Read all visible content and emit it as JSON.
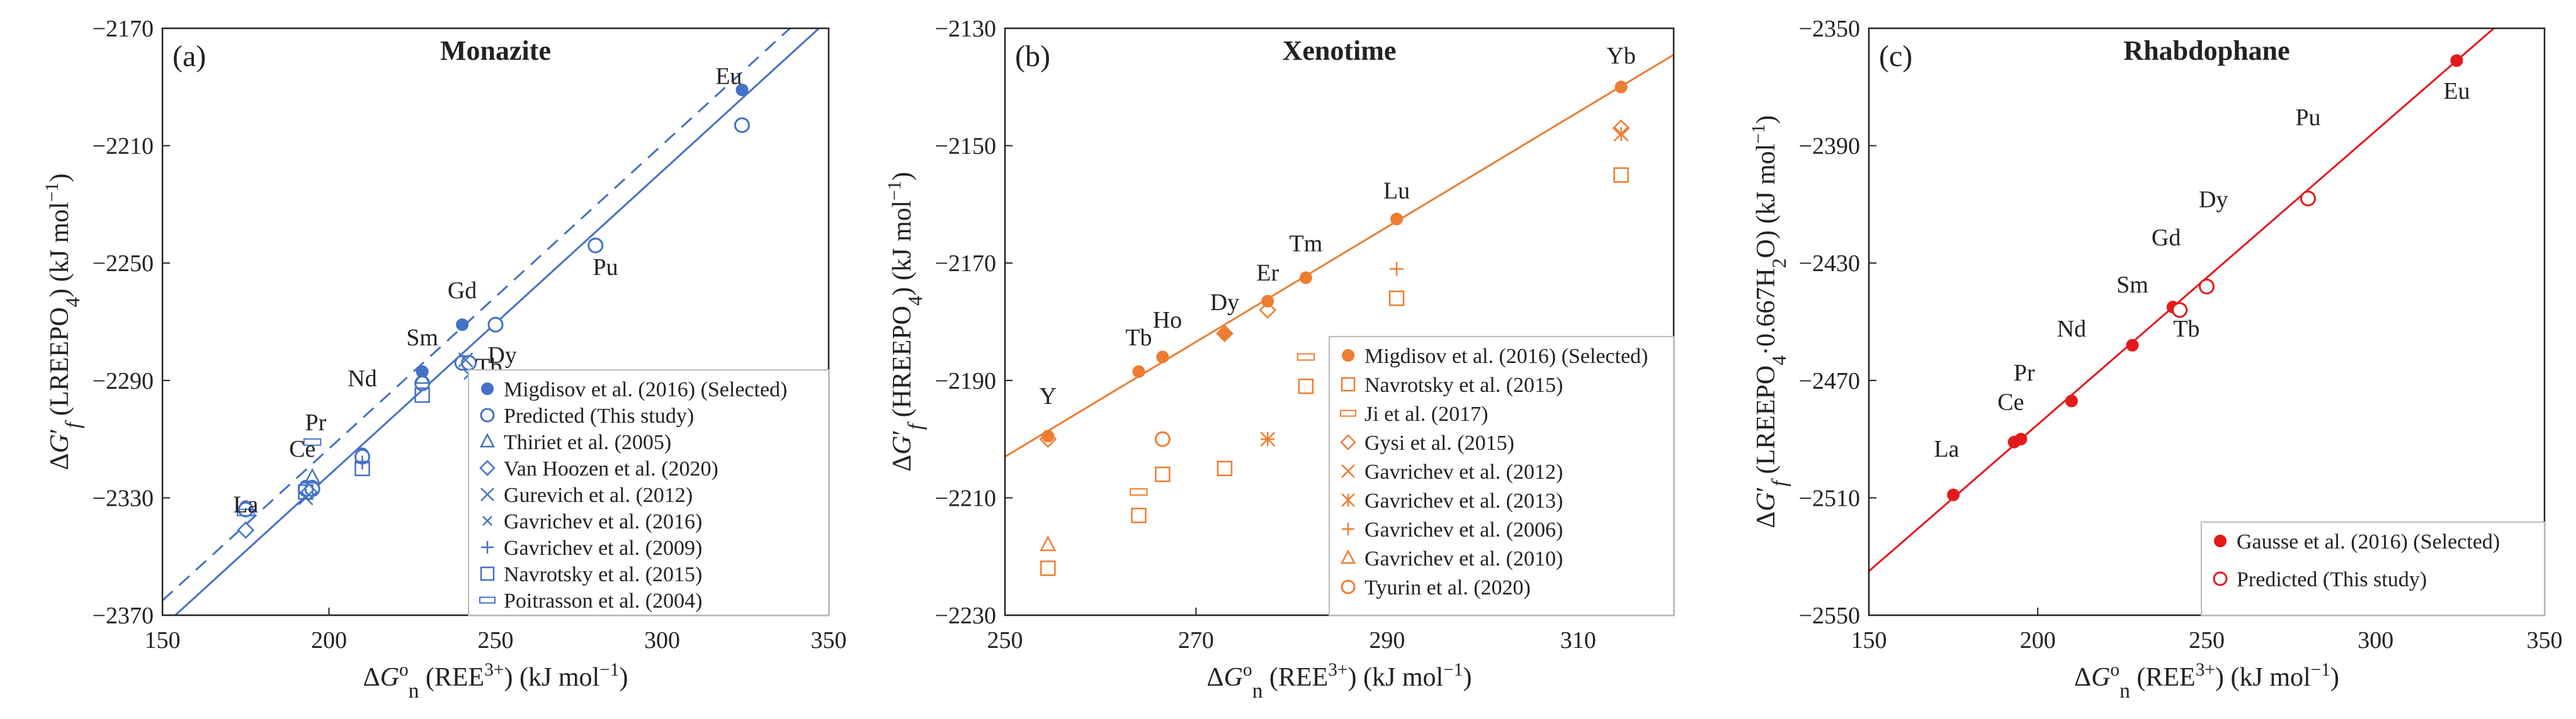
{
  "colors": {
    "monazite": "#4472C4",
    "xenotime": "#ED7D31",
    "rhabdophane": "#E31A1C"
  },
  "chart_data": [
    {
      "type": "scatter",
      "panel_label": "(a)",
      "title": "Monazite",
      "xlabel_html": "ΔG°n (REE3+) (kJ mol−1)",
      "ylabel_html": "ΔG′f (LREEPO4) (kJ mol−1)",
      "xlim": [
        150,
        350
      ],
      "ylim": [
        -2370,
        -2170
      ],
      "xticks": [
        150,
        200,
        250,
        300,
        350
      ],
      "yticks": [
        -2370,
        -2330,
        -2290,
        -2250,
        -2210,
        -2170
      ],
      "tick_labels_x": [
        "150",
        "200",
        "250",
        "300",
        "350"
      ],
      "tick_labels_y": [
        "−2370",
        "−2330",
        "−2290",
        "−2250",
        "−2210",
        "−2170"
      ],
      "legend": [
        "Migdisov et al. (2016) (Selected)",
        "Predicted (This study)",
        "Thiriet et al. (2005)",
        "Van Hoozen et al. (2020)",
        "Gurevich et al. (2012)",
        "Gavrichev et al. (2016)",
        "Gavrichev et al. (2009)",
        "Navrotsky et al. (2015)",
        "Poitrasson et al. (2004)"
      ],
      "element_labels": [
        {
          "text": "La",
          "x": 175,
          "y": -2335
        },
        {
          "text": "Ce",
          "x": 192,
          "y": -2316
        },
        {
          "text": "Pr",
          "x": 196,
          "y": -2307
        },
        {
          "text": "Nd",
          "x": 210,
          "y": -2292
        },
        {
          "text": "Sm",
          "x": 228,
          "y": -2278
        },
        {
          "text": "Gd",
          "x": 240,
          "y": -2262
        },
        {
          "text": "Tb",
          "x": 248,
          "y": -2288
        },
        {
          "text": "Dy",
          "x": 252,
          "y": -2284
        },
        {
          "text": "Pu",
          "x": 283,
          "y": -2254
        },
        {
          "text": "Eu",
          "x": 320,
          "y": -2189
        }
      ],
      "series": [
        {
          "name": "Migdisov et al. (2016) (Selected)",
          "marker": "filled-circle",
          "x": [
            175,
            193,
            195,
            210,
            228,
            240,
            324
          ],
          "y": [
            -2333,
            -2326,
            -2326,
            -2315,
            -2287,
            -2271,
            -2191
          ]
        },
        {
          "name": "Predicted (This study)",
          "marker": "open-circle",
          "x": [
            175,
            193,
            195,
            210,
            228,
            240,
            242,
            250,
            280,
            324
          ],
          "y": [
            -2334,
            -2327,
            -2327,
            -2316,
            -2291,
            -2284,
            -2284,
            -2271,
            -2244,
            -2203
          ]
        },
        {
          "name": "Thiriet et al. (2005)",
          "marker": "triangle",
          "x": [
            195,
            228
          ],
          "y": [
            -2323,
            -2289
          ]
        },
        {
          "name": "Van Hoozen et al. (2020)",
          "marker": "diamond",
          "x": [
            175,
            194
          ],
          "y": [
            -2341,
            -2328
          ]
        },
        {
          "name": "Gurevich et al. (2012)",
          "marker": "x",
          "x": [
            193,
            241
          ],
          "y": [
            -2330,
            -2283
          ]
        },
        {
          "name": "Gavrichev et al. (2016)",
          "marker": "small-x",
          "x": [
            242
          ],
          "y": [
            -2288
          ]
        },
        {
          "name": "Gavrichev et al. (2009)",
          "marker": "plus",
          "x": [
            210
          ],
          "y": [
            -2318
          ]
        },
        {
          "name": "Navrotsky et al. (2015)",
          "marker": "square",
          "x": [
            193,
            210,
            228
          ],
          "y": [
            -2328,
            -2320,
            -2295
          ]
        },
        {
          "name": "Poitrasson et al. (2004)",
          "marker": "dash",
          "x": [
            175,
            195
          ],
          "y": [
            -2335,
            -2311
          ]
        }
      ],
      "lines": [
        {
          "style": "solid",
          "x": [
            150,
            350
          ],
          "y": [
            -2374,
            -2167
          ]
        },
        {
          "style": "dashed",
          "x": [
            150,
            350
          ],
          "y": [
            -2365,
            -2158
          ]
        }
      ]
    },
    {
      "type": "scatter",
      "panel_label": "(b)",
      "title": "Xenotime",
      "xlabel_html": "ΔG°n (REE3+) (kJ mol−1)",
      "ylabel_html": "ΔG′f (HREEPO4) (kJ mol−1)",
      "xlim": [
        250,
        320
      ],
      "ylim": [
        -2230,
        -2130
      ],
      "xticks": [
        250,
        270,
        290,
        310
      ],
      "yticks": [
        -2230,
        -2210,
        -2190,
        -2170,
        -2150,
        -2130
      ],
      "tick_labels_x": [
        "250",
        "270",
        "290",
        "310"
      ],
      "tick_labels_y": [
        "−2230",
        "−2210",
        "−2190",
        "−2170",
        "−2150",
        "−2130"
      ],
      "legend": [
        "Migdisov et al. (2016) (Selected)",
        "Navrotsky et al. (2015)",
        "Ji et al. (2017)",
        "Gysi et al. (2015)",
        "Gavrichev et al. (2012)",
        "Gavrichev et al. (2013)",
        "Gavrichev et al. (2006)",
        "Gavrichev et al. (2010)",
        "Tyurin et al. (2020)"
      ],
      "element_labels": [
        {
          "text": "Y",
          "x": 254.5,
          "y": -2194
        },
        {
          "text": "Tb",
          "x": 264,
          "y": -2184
        },
        {
          "text": "Ho",
          "x": 267,
          "y": -2181
        },
        {
          "text": "Dy",
          "x": 273,
          "y": -2178
        },
        {
          "text": "Er",
          "x": 277.5,
          "y": -2173
        },
        {
          "text": "Tm",
          "x": 281.5,
          "y": -2168
        },
        {
          "text": "Lu",
          "x": 291,
          "y": -2159
        },
        {
          "text": "Yb",
          "x": 314.5,
          "y": -2136
        }
      ],
      "series": [
        {
          "name": "Migdisov et al. (2016) (Selected)",
          "marker": "filled-circle",
          "x": [
            254.5,
            264,
            266.5,
            273,
            277.5,
            281.5,
            291,
            314.5
          ],
          "y": [
            -2199.5,
            -2188.5,
            -2186,
            -2182,
            -2176.5,
            -2172.5,
            -2162.5,
            -2140
          ]
        },
        {
          "name": "Navrotsky et al. (2015)",
          "marker": "square",
          "x": [
            254.5,
            264,
            266.5,
            273,
            281.5,
            291,
            314.5
          ],
          "y": [
            -2222,
            -2213,
            -2206,
            -2205,
            -2191,
            -2176,
            -2155
          ]
        },
        {
          "name": "Ji et al. (2017)",
          "marker": "dash",
          "x": [
            264,
            281.5
          ],
          "y": [
            -2209,
            -2186
          ]
        },
        {
          "name": "Gysi et al. (2015)",
          "marker": "diamond",
          "x": [
            254.5,
            273,
            277.5,
            314.5
          ],
          "y": [
            -2200,
            -2182,
            -2178,
            -2147
          ]
        },
        {
          "name": "Gavrichev et al. (2012)",
          "marker": "x",
          "x": [
            277.5
          ],
          "y": [
            -2200
          ]
        },
        {
          "name": "Gavrichev et al. (2013)",
          "marker": "asterisk",
          "x": [
            314.5
          ],
          "y": [
            -2148
          ]
        },
        {
          "name": "Gavrichev et al. (2006)",
          "marker": "plus",
          "x": [
            277.5,
            291
          ],
          "y": [
            -2200,
            -2171
          ]
        },
        {
          "name": "Gavrichev et al. (2010)",
          "marker": "triangle",
          "x": [
            254.5
          ],
          "y": [
            -2218
          ]
        },
        {
          "name": "Tyurin et al. (2020)",
          "marker": "open-circle",
          "x": [
            266.5
          ],
          "y": [
            -2200
          ]
        }
      ],
      "lines": [
        {
          "style": "solid",
          "x": [
            250,
            320
          ],
          "y": [
            -2203,
            -2134.5
          ]
        }
      ]
    },
    {
      "type": "scatter",
      "panel_label": "(c)",
      "title": "Rhabdophane",
      "xlabel_html": "ΔG°n (REE3+) (kJ mol−1)",
      "ylabel_html": "ΔG′f (LREEPO4·0.667H2O) (kJ mol−1)",
      "xlim": [
        150,
        350
      ],
      "ylim": [
        -2550,
        -2350
      ],
      "xticks": [
        150,
        200,
        250,
        300,
        350
      ],
      "yticks": [
        -2550,
        -2510,
        -2470,
        -2430,
        -2390,
        -2350
      ],
      "tick_labels_x": [
        "150",
        "200",
        "250",
        "300",
        "350"
      ],
      "tick_labels_y": [
        "−2550",
        "−2510",
        "−2470",
        "−2430",
        "−2390",
        "−2350"
      ],
      "legend": [
        "Gausse et al. (2016) (Selected)",
        "Predicted (This study)"
      ],
      "element_labels": [
        {
          "text": "La",
          "x": 173,
          "y": -2496
        },
        {
          "text": "Ce",
          "x": 192,
          "y": -2480
        },
        {
          "text": "Pr",
          "x": 196,
          "y": -2470
        },
        {
          "text": "Nd",
          "x": 210,
          "y": -2455
        },
        {
          "text": "Sm",
          "x": 228,
          "y": -2440
        },
        {
          "text": "Gd",
          "x": 238,
          "y": -2424
        },
        {
          "text": "Tb",
          "x": 244,
          "y": -2455
        },
        {
          "text": "Dy",
          "x": 252,
          "y": -2411
        },
        {
          "text": "Pu",
          "x": 280,
          "y": -2383
        },
        {
          "text": "Eu",
          "x": 324,
          "y": -2374
        }
      ],
      "series": [
        {
          "name": "Gausse et al. (2016) (Selected)",
          "marker": "filled-circle",
          "x": [
            175,
            193,
            195,
            210,
            228,
            240,
            324
          ],
          "y": [
            -2509,
            -2491,
            -2490,
            -2477,
            -2458,
            -2445,
            -2361
          ]
        },
        {
          "name": "Predicted (This study)",
          "marker": "open-circle",
          "x": [
            242,
            250,
            280
          ],
          "y": [
            -2446,
            -2438,
            -2408
          ]
        }
      ],
      "lines": [
        {
          "style": "solid",
          "x": [
            150,
            350
          ],
          "y": [
            -2535,
            -2335
          ]
        }
      ]
    }
  ]
}
